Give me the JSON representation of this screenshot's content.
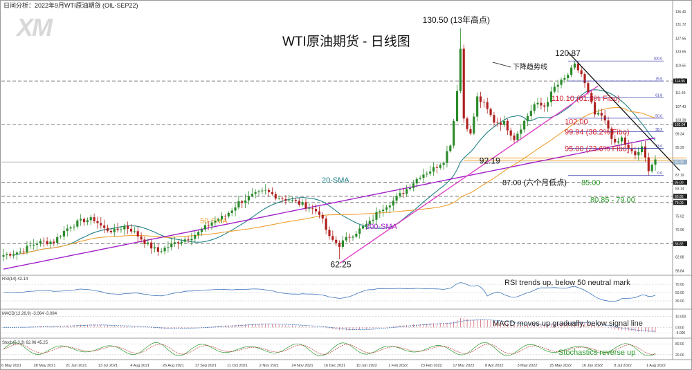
{
  "header": {
    "title": "日间分析：2022年9月WTI原油期货 (OIL-SEP22)",
    "logo": "XM"
  },
  "chart_data": [
    {
      "type": "candlestick",
      "title": "WTI原油期货 - 日线图",
      "y_range": [
        57.9,
        138.5
      ],
      "y_ticks": [
        "135.40",
        "131.72",
        "127.55",
        "123.65",
        "119.55",
        "115.40",
        "111.49",
        "107.43",
        "103.39",
        "99.34",
        "95.29",
        "91.23",
        "87.19",
        "83.14",
        "79.07",
        "75.02",
        "70.96",
        "66.93",
        "62.88",
        "58.84"
      ],
      "x_labels": [
        "6 May 2021",
        "28 May 2021",
        "21 Jun 2021",
        "13 Jul 2021",
        "4 Aug 2021",
        "26 Aug 2021",
        "17 Sep 2021",
        "11 Oct 2021",
        "2 Nov 2021",
        "24 Nov 2021",
        "16 Dec 2021",
        "10 Jan 2022",
        "1 Feb 2022",
        "23 Feb 2022",
        "17 Mar 2022",
        "8 Apr 2022",
        "3 May 2022",
        "25 May 2022",
        "16 Jun 2022",
        "8 Jul 2022",
        "1 Aug 2022"
      ],
      "price_markers": [
        "114.95",
        "102.04",
        "91.00",
        "85.00",
        "80.85",
        "79.00",
        "66.82"
      ],
      "horizontal_levels": [
        114.95,
        102.04,
        85.0,
        80.85,
        79.0,
        66.82
      ],
      "ref_level": 91.0,
      "fib_levels": [
        {
          "label": "100.0",
          "value": 120.87
        },
        {
          "label": "76.6",
          "value": 114.95
        },
        {
          "label": "61.8",
          "value": 110.1
        },
        {
          "label": "50.0",
          "value": 103.94
        },
        {
          "label": "38.2",
          "value": 99.94
        },
        {
          "label": "23.6",
          "value": 95.0
        },
        {
          "label": "0.0",
          "value": 87.0
        }
      ],
      "series": [
        {
          "name": "20-SMA",
          "color": "#1f7f86"
        },
        {
          "name": "50-SMA",
          "color": "#f0a030"
        },
        {
          "name": "200-SMA",
          "color": "#a020c8"
        }
      ],
      "candle_anchors": [
        [
          0,
          63.5
        ],
        [
          5,
          64.5
        ],
        [
          10,
          67.2
        ],
        [
          15,
          67.5
        ],
        [
          18,
          70.5
        ],
        [
          20,
          72.2
        ],
        [
          24,
          73.8
        ],
        [
          27,
          74.0
        ],
        [
          30,
          71.2
        ],
        [
          33,
          70.5
        ],
        [
          36,
          72.0
        ],
        [
          38,
          71.0
        ],
        [
          40,
          69.2
        ],
        [
          43,
          66.5
        ],
        [
          46,
          64.5
        ],
        [
          49,
          66.0
        ],
        [
          52,
          67.5
        ],
        [
          55,
          68.5
        ],
        [
          58,
          70.0
        ],
        [
          62,
          73.2
        ],
        [
          66,
          75.0
        ],
        [
          70,
          79.0
        ],
        [
          74,
          81.0
        ],
        [
          78,
          82.3
        ],
        [
          82,
          80.5
        ],
        [
          86,
          79.5
        ],
        [
          90,
          78.0
        ],
        [
          94,
          76.0
        ],
        [
          97,
          68.5
        ],
        [
          100,
          66.5
        ],
        [
          103,
          69.0
        ],
        [
          106,
          71.0
        ],
        [
          109,
          73.0
        ],
        [
          112,
          77.0
        ],
        [
          116,
          79.5
        ],
        [
          120,
          83.0
        ],
        [
          124,
          87.0
        ],
        [
          128,
          89.0
        ],
        [
          131,
          91.5
        ],
        [
          133,
          96.5
        ],
        [
          135,
          110.0
        ],
        [
          136,
          123.5
        ],
        [
          137,
          104.0
        ],
        [
          139,
          99.0
        ],
        [
          141,
          110.0
        ],
        [
          143,
          108.0
        ],
        [
          146,
          103.0
        ],
        [
          149,
          102.5
        ],
        [
          152,
          98.0
        ],
        [
          155,
          103.0
        ],
        [
          158,
          108.0
        ],
        [
          161,
          107.5
        ],
        [
          164,
          113.0
        ],
        [
          167,
          115.5
        ],
        [
          170,
          119.5
        ],
        [
          172,
          117.0
        ],
        [
          174,
          111.0
        ],
        [
          176,
          105.0
        ],
        [
          178,
          104.5
        ],
        [
          180,
          101.0
        ],
        [
          182,
          96.0
        ],
        [
          184,
          98.0
        ],
        [
          186,
          94.5
        ],
        [
          188,
          93.0
        ],
        [
          190,
          95.0
        ],
        [
          192,
          89.0
        ],
        [
          194,
          91.8
        ]
      ],
      "candle_count": 195,
      "annotations": [
        {
          "text": "130.50 (13年高点)",
          "value": 130.5
        },
        {
          "text": "120.87",
          "value": 120.87
        },
        {
          "text": "92.19",
          "value": 92.19
        },
        {
          "text": "62.25",
          "value": 62.25
        },
        {
          "text": "87.00 (六个月低点)",
          "value": 87.0
        },
        {
          "text": "下降趋势线"
        },
        {
          "text": "110.10 (61.8% Fibo)",
          "value": 110.1
        },
        {
          "text": "102.00",
          "value": 102.0
        },
        {
          "text": "99.94 (38.2% Fibo)",
          "value": 99.94
        },
        {
          "text": "95.00 (23.6% Fibo)",
          "value": 95.0
        },
        {
          "text": "85.00",
          "value": 85.0
        },
        {
          "text": "80.85 - 79.00"
        }
      ]
    },
    {
      "type": "line",
      "title": "RSI(14) 42.14",
      "y_ticks": [
        "70.00",
        "50.00",
        "30.00"
      ],
      "annotation": "RSI trends up, below 50 neutral mark"
    },
    {
      "type": "bar",
      "title": "MACD(12,26,9) -3.064 -3.084",
      "y_ticks": [
        "10.000",
        "0.000",
        "-5.000"
      ],
      "annotation": "MACD moves up gradually, below signal line"
    },
    {
      "type": "line",
      "title": "Stoch(5,3,3) 62.06 45.25",
      "y_ticks": [
        "80.00",
        "20.00"
      ],
      "annotation": "Stochastics reverse up"
    }
  ]
}
